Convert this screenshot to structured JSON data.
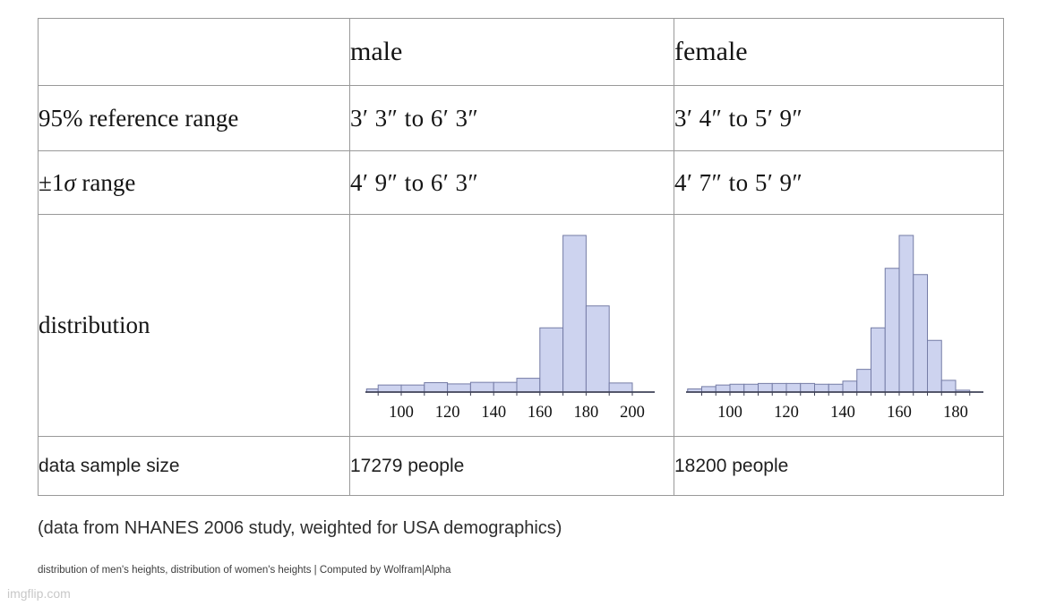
{
  "table": {
    "header": {
      "male": "male",
      "female": "female"
    },
    "rows": {
      "reference": {
        "label": "95% reference range",
        "male": "3′ 3″ to 6′ 3″",
        "female": "3′ 4″ to 5′ 9″"
      },
      "sigma": {
        "label_pre": "±1",
        "label_sigma": "σ",
        "label_post": " range",
        "male": "4′ 9″ to 6′ 3″",
        "female": "4′ 7″ to 5′ 9″"
      },
      "distribution": {
        "label": "distribution"
      },
      "sample": {
        "label": "data sample size",
        "male": "17279 people",
        "female": "18200 people"
      }
    }
  },
  "chart_data": [
    {
      "id": "male-distribution",
      "type": "bar",
      "title": "distribution of men's heights",
      "bin_edges": [
        85,
        90,
        100,
        110,
        120,
        130,
        140,
        150,
        160,
        170,
        180,
        190,
        200
      ],
      "relative_frequency": [
        0.02,
        0.045,
        0.045,
        0.06,
        0.052,
        0.062,
        0.062,
        0.088,
        0.41,
        1.0,
        0.55,
        0.058
      ],
      "x_tick_labels": [
        100,
        120,
        140,
        160,
        180,
        200
      ],
      "x_axis_range": [
        85,
        210
      ],
      "ylim": [
        0,
        1
      ],
      "grid": "off",
      "legend": "none",
      "bar_fill": "#cdd3ef",
      "bar_stroke": "#757ca6",
      "axis_color": "#3f4257"
    },
    {
      "id": "female-distribution",
      "type": "bar",
      "title": "distribution of women's heights",
      "bin_edges": [
        85,
        90,
        95,
        100,
        105,
        110,
        115,
        120,
        125,
        130,
        135,
        140,
        145,
        150,
        155,
        160,
        165,
        170,
        175,
        180,
        185
      ],
      "relative_frequency": [
        0.02,
        0.035,
        0.045,
        0.05,
        0.05,
        0.055,
        0.055,
        0.055,
        0.055,
        0.05,
        0.05,
        0.07,
        0.145,
        0.41,
        0.79,
        1.0,
        0.75,
        0.33,
        0.075,
        0.012
      ],
      "x_tick_labels": [
        100,
        120,
        140,
        160,
        180
      ],
      "x_axis_range": [
        87,
        190
      ],
      "ylim": [
        0,
        1
      ],
      "grid": "off",
      "legend": "none",
      "bar_fill": "#cdd3ef",
      "bar_stroke": "#757ca6",
      "axis_color": "#3f4257"
    }
  ],
  "footer": {
    "note": "(data from NHANES 2006 study, weighted for USA demographics)",
    "caption": "distribution of men's heights, distribution of women's heights | Computed by Wolfram|Alpha",
    "watermark": "imgflip.com"
  }
}
